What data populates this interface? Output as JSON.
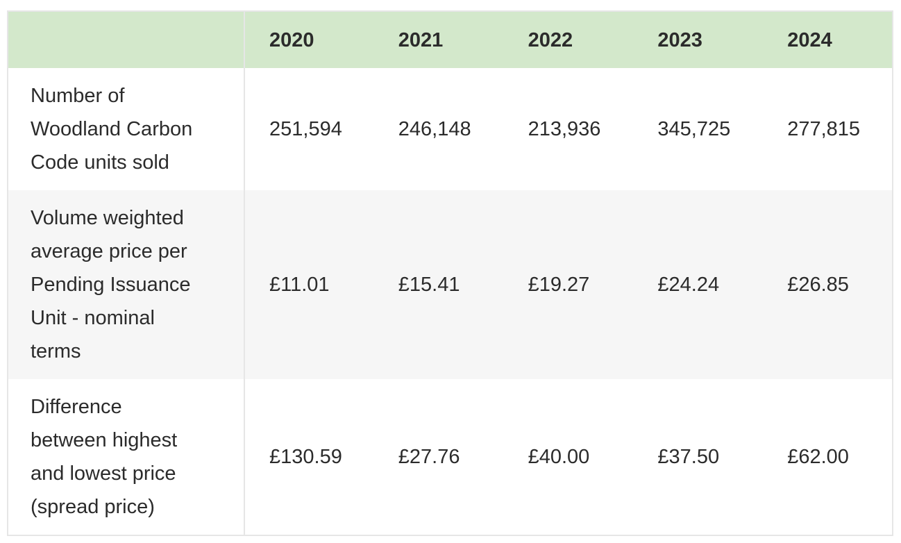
{
  "table": {
    "header": [
      "2020",
      "2021",
      "2022",
      "2023",
      "2024"
    ],
    "rows": [
      {
        "label": [
          "Number of",
          "Woodland Carbon",
          "Code units sold"
        ],
        "cells": [
          "251,594",
          "246,148",
          "213,936",
          "345,725",
          "277,815"
        ]
      },
      {
        "label": [
          "Volume weighted",
          "average price per",
          "Pending Issuance",
          "Unit - nominal",
          "terms"
        ],
        "cells": [
          "£11.01",
          "£15.41",
          "£19.27",
          "£24.24",
          "£26.85"
        ]
      },
      {
        "label": [
          "Difference",
          "between highest",
          "and lowest price",
          "(spread price)"
        ],
        "cells": [
          "£130.59",
          "£27.76",
          "£40.00",
          "£37.50",
          "£62.00"
        ]
      }
    ]
  }
}
